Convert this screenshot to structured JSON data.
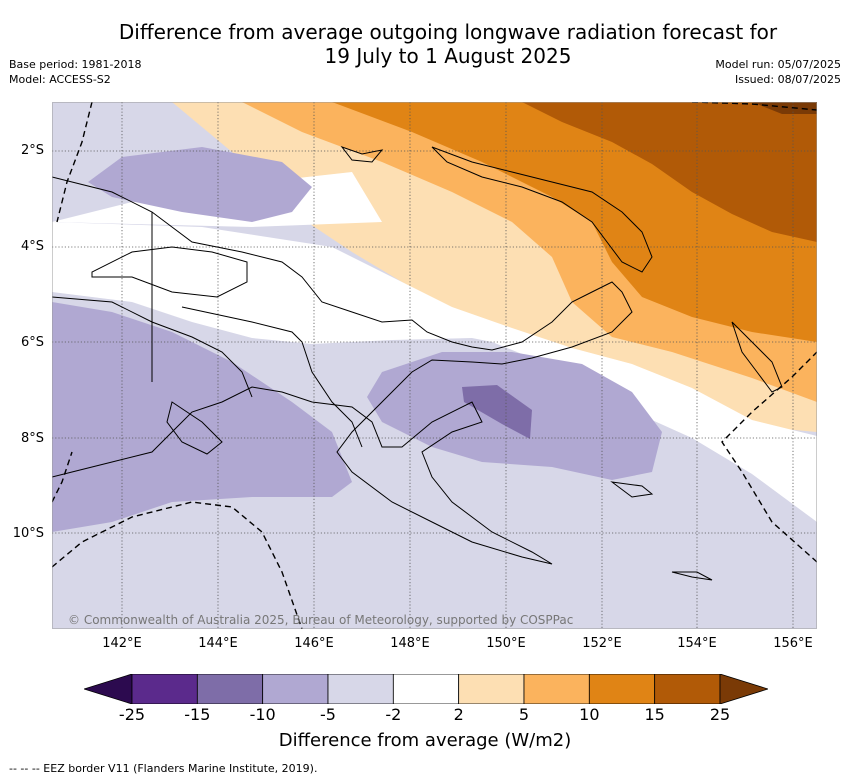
{
  "header": {
    "title_line1": "Difference from average outgoing longwave radiation forecast for",
    "title_line2": "19 July to 1 August 2025",
    "base_period": "Base period: 1981-2018",
    "model": "Model: ACCESS-S2",
    "model_run": "Model run: 05/07/2025",
    "issued": "Issued: 08/07/2025"
  },
  "map": {
    "lat_labels": [
      "2°S",
      "4°S",
      "6°S",
      "8°S",
      "10°S"
    ],
    "lon_labels": [
      "142°E",
      "144°E",
      "146°E",
      "148°E",
      "150°E",
      "152°E",
      "154°E",
      "156°E"
    ],
    "credit": "© Commonwealth of Australia 2025, Bureau of Meteorology, supported by COSPPac"
  },
  "colorbar": {
    "labels": [
      "-25",
      "-15",
      "-10",
      "-5",
      "-2",
      "2",
      "5",
      "10",
      "15",
      "25"
    ],
    "colors": [
      "#2c0a4f",
      "#5b2a8c",
      "#7e6da8",
      "#b0a8d2",
      "#d7d7e8",
      "#ffffff",
      "#fddfb3",
      "#fbb35d",
      "#e08415",
      "#b15a07",
      "#7a3a06"
    ],
    "title": "Difference from average (W/m2)"
  },
  "footer": {
    "eez_note": "--  --  -- EEZ border V11 (Flanders Marine Institute, 2019)."
  }
}
